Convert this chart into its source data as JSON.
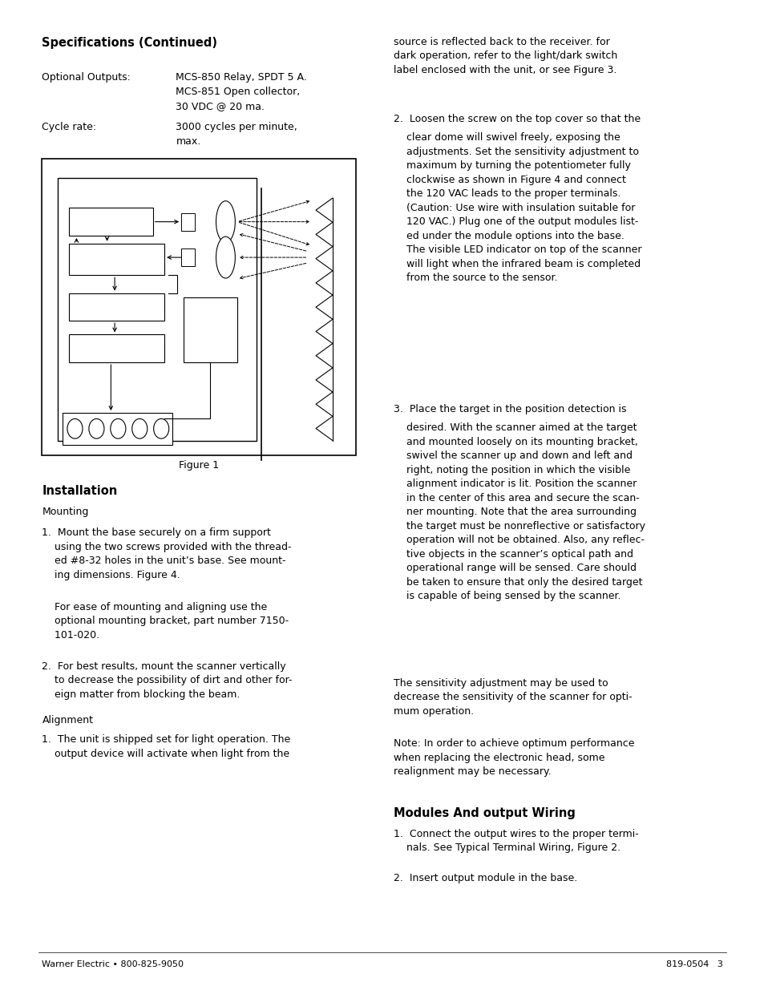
{
  "bg_color": "#ffffff",
  "text_color": "#000000",
  "page_width": 9.54,
  "page_height": 12.35,
  "specs_heading": "Specifications (Continued)",
  "optional_outputs_label": "Optional Outputs:",
  "optional_outputs_value": "MCS-850 Relay, SPDT 5 A.\nMCS-851 Open collector,\n30 VDC @ 20 ma.",
  "cycle_rate_label": "Cycle rate:",
  "cycle_rate_value": "3000 cycles per minute,\nmax.",
  "figure_caption": "Figure 1",
  "installation_heading": "Installation",
  "mounting_subhead": "Mounting",
  "alignment_subhead": "Alignment",
  "right_col_para0": "source is reflected back to the receiver. for\ndark operation, refer to the light/dark switch\nlabel enclosed with the unit, or see Figure 3.",
  "modules_heading": "Modules And output Wiring",
  "footer_left": "Warner Electric • 800-825-9050",
  "footer_right": "819-0504   3"
}
